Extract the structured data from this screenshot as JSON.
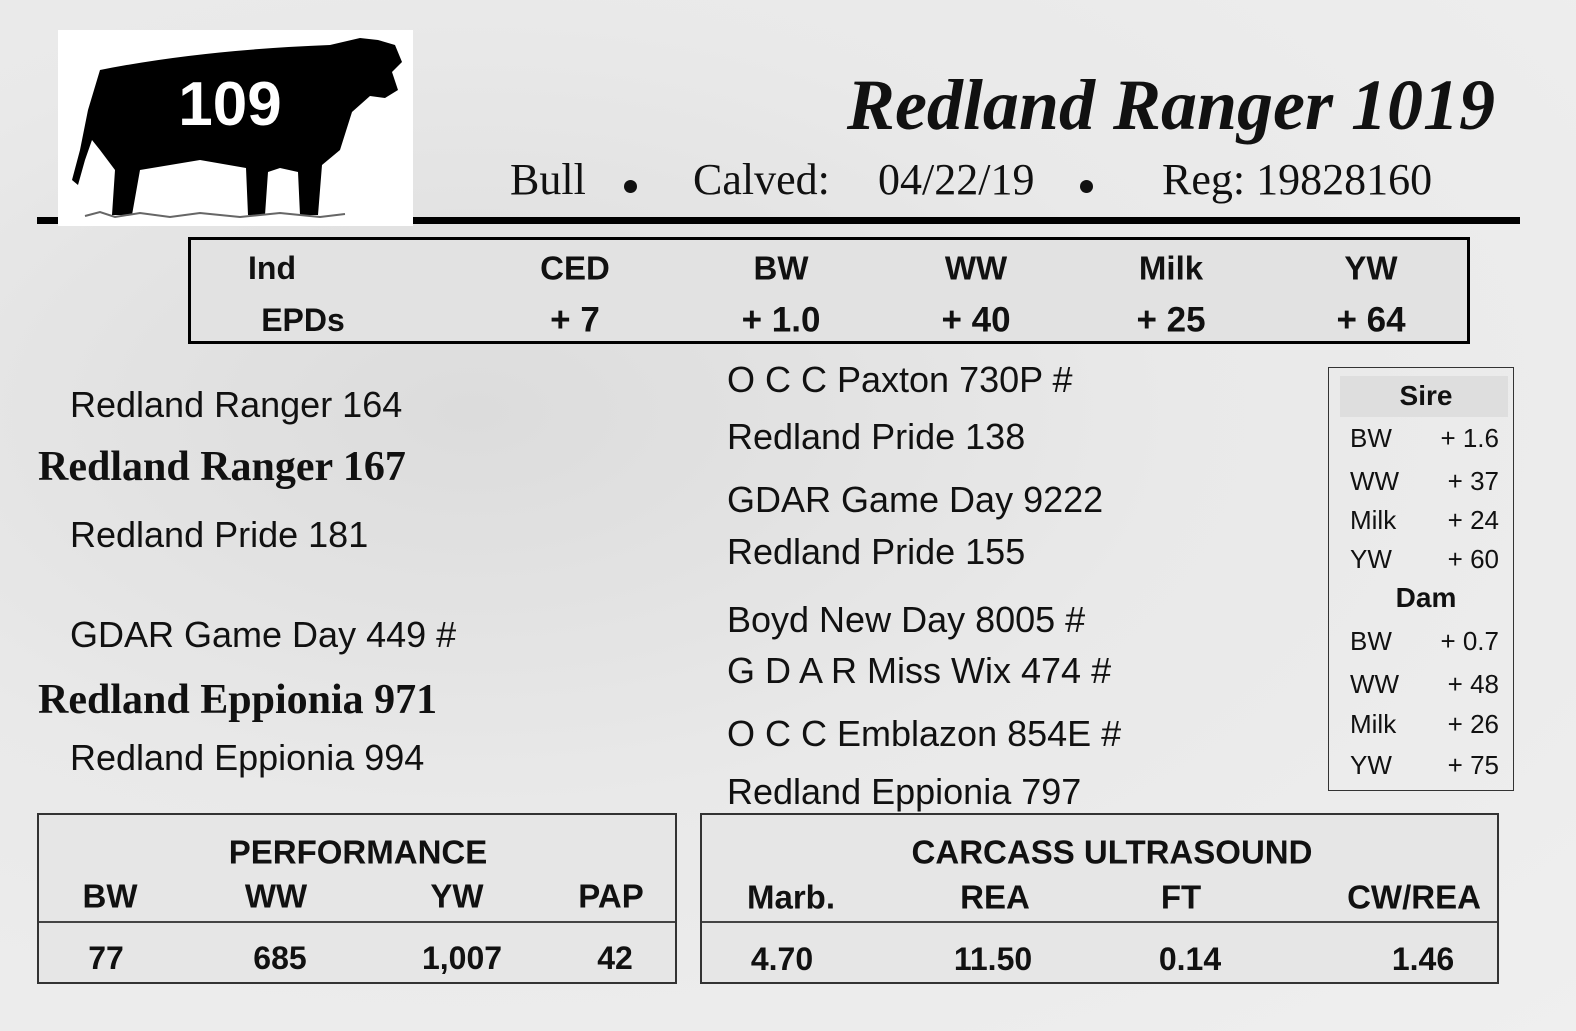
{
  "lot_number": "109",
  "header": {
    "title": "Redland Ranger 1019",
    "sex": "Bull",
    "calved_label": "Calved:",
    "calved": "04/22/19",
    "registration": "Reg: 19828160"
  },
  "epd_table": {
    "row_labels": [
      "Ind",
      "EPDs"
    ],
    "columns": [
      "CED",
      "BW",
      "WW",
      "Milk",
      "YW"
    ],
    "values": [
      "+ 7",
      "+ 1.0",
      "+ 40",
      "+ 25",
      "+ 64"
    ]
  },
  "pedigree": {
    "left": [
      "Redland Ranger 164",
      "Redland Ranger 167",
      "Redland Pride 181",
      "GDAR Game Day 449 #",
      "Redland Eppionia 971",
      "Redland Eppionia 994"
    ],
    "right": [
      "O C C Paxton 730P #",
      "Redland Pride 138",
      "GDAR Game Day 9222",
      "Redland Pride 155",
      "Boyd New Day 8005 #",
      "G D A R Miss Wix 474 #",
      "O C C Emblazon 854E #",
      "Redland Eppionia 797"
    ]
  },
  "parent_epds": {
    "sire": {
      "title": "Sire",
      "rows": [
        [
          "BW",
          "+ 1.6"
        ],
        [
          "WW",
          "+ 37"
        ],
        [
          "Milk",
          "+ 24"
        ],
        [
          "YW",
          "+ 60"
        ]
      ]
    },
    "dam": {
      "title": "Dam",
      "rows": [
        [
          "BW",
          "+ 0.7"
        ],
        [
          "WW",
          "+ 48"
        ],
        [
          "Milk",
          "+ 26"
        ],
        [
          "YW",
          "+ 75"
        ]
      ]
    }
  },
  "performance": {
    "title": "PERFORMANCE",
    "headers": [
      "BW",
      "WW",
      "YW",
      "PAP"
    ],
    "values": [
      "77",
      "685",
      "1,007",
      "42"
    ]
  },
  "carcass": {
    "title": "CARCASS ULTRASOUND",
    "headers": [
      "Marb.",
      "REA",
      "FT",
      "CW/REA"
    ],
    "values": [
      "4.70",
      "11.50",
      "0.14",
      "1.46"
    ]
  }
}
